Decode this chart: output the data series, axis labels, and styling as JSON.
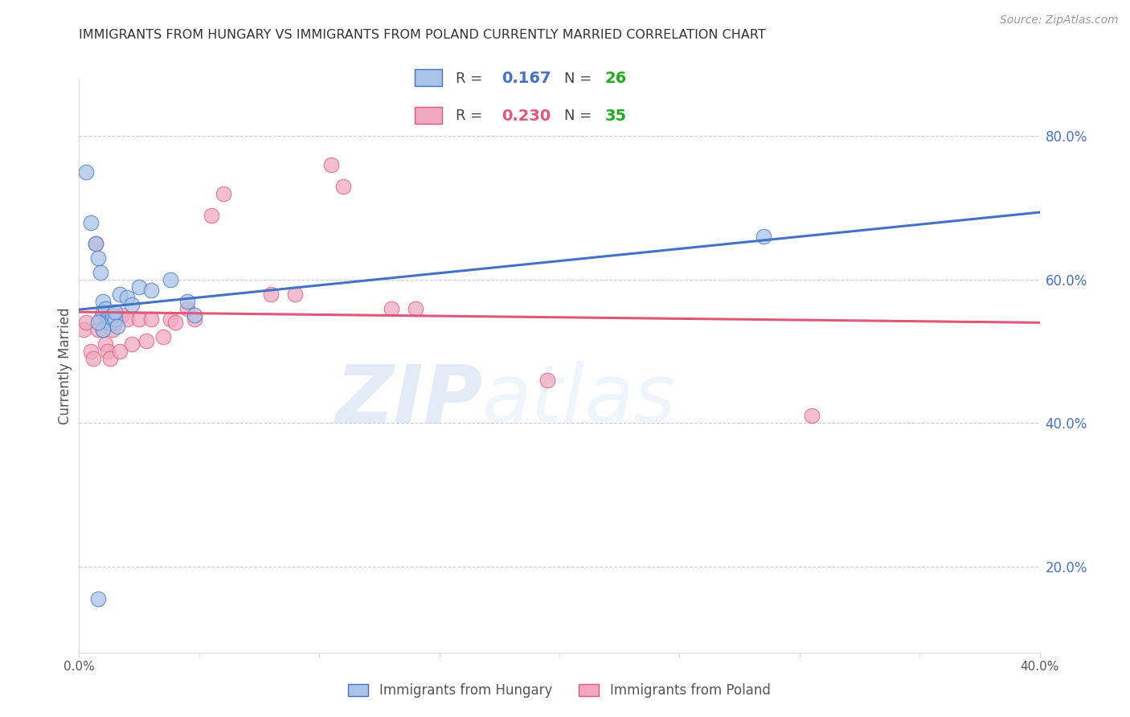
{
  "title": "IMMIGRANTS FROM HUNGARY VS IMMIGRANTS FROM POLAND CURRENTLY MARRIED CORRELATION CHART",
  "source": "Source: ZipAtlas.com",
  "ylabel_left": "Currently Married",
  "xlim": [
    0.0,
    0.4
  ],
  "ylim": [
    0.08,
    0.88
  ],
  "right_yticks": [
    0.2,
    0.4,
    0.6,
    0.8
  ],
  "right_yticklabels": [
    "20.0%",
    "40.0%",
    "60.0%",
    "80.0%"
  ],
  "xticks": [
    0.0,
    0.05,
    0.1,
    0.15,
    0.2,
    0.25,
    0.3,
    0.35,
    0.4
  ],
  "xticklabels": [
    "0.0%",
    "",
    "",
    "",
    "",
    "",
    "",
    "",
    "40.0%"
  ],
  "grid_color": "#cccccc",
  "watermark_zip": "ZIP",
  "watermark_atlas": "atlas",
  "hungary_color": "#aac4e8",
  "poland_color": "#f0a8c0",
  "hungary_line_color": "#4472c4",
  "poland_line_color": "#e05878",
  "hungary_R": 0.167,
  "hungary_N": 26,
  "poland_R": 0.23,
  "poland_N": 35,
  "hungary_x": [
    0.003,
    0.005,
    0.007,
    0.008,
    0.009,
    0.01,
    0.01,
    0.011,
    0.012,
    0.012,
    0.013,
    0.014,
    0.015,
    0.015,
    0.016,
    0.017,
    0.02,
    0.022,
    0.025,
    0.03,
    0.045,
    0.048,
    0.285,
    0.01,
    0.008,
    0.038
  ],
  "hungary_y": [
    0.75,
    0.68,
    0.65,
    0.63,
    0.61,
    0.57,
    0.555,
    0.56,
    0.545,
    0.54,
    0.54,
    0.55,
    0.545,
    0.555,
    0.535,
    0.58,
    0.575,
    0.565,
    0.59,
    0.585,
    0.57,
    0.55,
    0.66,
    0.53,
    0.54,
    0.6
  ],
  "hungary_outlier_x": [
    0.008
  ],
  "hungary_outlier_y": [
    0.155
  ],
  "poland_x": [
    0.002,
    0.003,
    0.005,
    0.006,
    0.008,
    0.009,
    0.01,
    0.011,
    0.012,
    0.013,
    0.014,
    0.015,
    0.017,
    0.018,
    0.02,
    0.022,
    0.025,
    0.028,
    0.03,
    0.035,
    0.038,
    0.04,
    0.045,
    0.048,
    0.055,
    0.06,
    0.08,
    0.09,
    0.105,
    0.11,
    0.13,
    0.14,
    0.195,
    0.305,
    0.007
  ],
  "poland_y": [
    0.53,
    0.54,
    0.5,
    0.49,
    0.53,
    0.545,
    0.53,
    0.51,
    0.5,
    0.49,
    0.53,
    0.54,
    0.5,
    0.55,
    0.545,
    0.51,
    0.545,
    0.515,
    0.545,
    0.52,
    0.545,
    0.54,
    0.56,
    0.545,
    0.69,
    0.72,
    0.58,
    0.58,
    0.76,
    0.73,
    0.56,
    0.56,
    0.46,
    0.41,
    0.65
  ]
}
